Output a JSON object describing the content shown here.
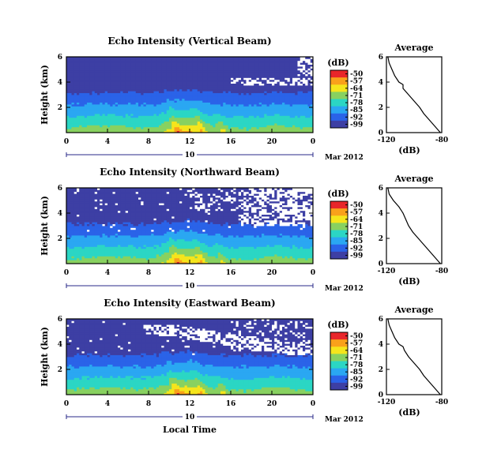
{
  "figure": {
    "xlabel": "Local Time"
  },
  "colorbar": {
    "unit": "(dB)",
    "ticks": [
      "-50",
      "-57",
      "-64",
      "-71",
      "-78",
      "-85",
      "-92",
      "-99"
    ],
    "colors": [
      "#e8262a",
      "#f9a11b",
      "#f5e51c",
      "#88d160",
      "#2bd6c4",
      "#2aa7f2",
      "#2a63e8",
      "#3d3fa4"
    ]
  },
  "chart_data": [
    {
      "type": "heatmap",
      "title": "Echo Intensity (Vertical Beam)",
      "ylabel": "Height (km)",
      "x_ticks": [
        "0",
        "4",
        "8",
        "12",
        "16",
        "20",
        "0"
      ],
      "y_ticks": [
        "6",
        "4",
        "2"
      ],
      "xlim": [
        0,
        24
      ],
      "ylim": [
        0,
        6
      ],
      "date_label": "10",
      "month_label": "Mar 2012",
      "value_unit": "dB",
      "crange": [
        -99,
        -50
      ],
      "white_gaps_above_km": 3.8,
      "average_profile": {
        "title": "Average",
        "xlabel": "(dB)",
        "x_ticks": [
          "-120",
          "-80"
        ],
        "y_ticks": [
          "6",
          "4",
          "2",
          "0"
        ],
        "xlim": [
          -120,
          -80
        ],
        "ylim": [
          0,
          6
        ],
        "height_km": [
          0,
          0.5,
          1,
          1.5,
          2,
          2.5,
          3,
          3.5,
          3.8,
          4,
          4.5,
          5,
          5.5,
          6
        ],
        "db": [
          -81,
          -85,
          -89,
          -93,
          -96,
          -100,
          -104,
          -108,
          -108,
          -111,
          -114,
          -116,
          -118,
          -119
        ]
      }
    },
    {
      "type": "heatmap",
      "title": "Echo Intensity (Northward Beam)",
      "ylabel": "Height (km)",
      "x_ticks": [
        "0",
        "4",
        "8",
        "12",
        "16",
        "20",
        "0"
      ],
      "y_ticks": [
        "6",
        "4",
        "2"
      ],
      "xlim": [
        0,
        24
      ],
      "ylim": [
        0,
        6
      ],
      "date_label": "10",
      "month_label": "Mar 2012",
      "value_unit": "dB",
      "crange": [
        -99,
        -50
      ],
      "white_gaps_above_km": 2.5,
      "average_profile": {
        "title": "Average",
        "xlabel": "(dB)",
        "x_ticks": [
          "-120",
          "-80"
        ],
        "y_ticks": [
          "6",
          "4",
          "2",
          "0"
        ],
        "xlim": [
          -120,
          -80
        ],
        "ylim": [
          0,
          6
        ],
        "height_km": [
          0,
          0.5,
          1,
          1.5,
          2,
          2.5,
          3,
          3.5,
          4,
          4.5,
          5,
          5.5,
          6
        ],
        "db": [
          -81,
          -85,
          -89,
          -93,
          -97,
          -101,
          -104,
          -106,
          -108,
          -111,
          -115,
          -118,
          -119
        ]
      }
    },
    {
      "type": "heatmap",
      "title": "Echo Intensity (Eastward Beam)",
      "ylabel": "Height (km)",
      "x_ticks": [
        "0",
        "4",
        "8",
        "12",
        "16",
        "20",
        "0"
      ],
      "y_ticks": [
        "6",
        "4",
        "2"
      ],
      "xlim": [
        0,
        24
      ],
      "ylim": [
        0,
        6
      ],
      "date_label": "10",
      "month_label": "Mar 2012",
      "value_unit": "dB",
      "crange": [
        -99,
        -50
      ],
      "white_gaps_above_km": 3.2,
      "average_profile": {
        "title": "Average",
        "xlabel": "(dB)",
        "x_ticks": [
          "-120",
          "-80"
        ],
        "y_ticks": [
          "6",
          "4",
          "2",
          "0"
        ],
        "xlim": [
          -120,
          -80
        ],
        "ylim": [
          0,
          6
        ],
        "height_km": [
          0,
          0.5,
          1,
          1.5,
          2,
          2.5,
          3,
          3.5,
          3.8,
          4,
          4.5,
          5,
          5.5,
          6
        ],
        "db": [
          -81,
          -85,
          -89,
          -93,
          -96,
          -100,
          -104,
          -107,
          -108,
          -111,
          -114,
          -116,
          -118,
          -119
        ]
      }
    }
  ]
}
